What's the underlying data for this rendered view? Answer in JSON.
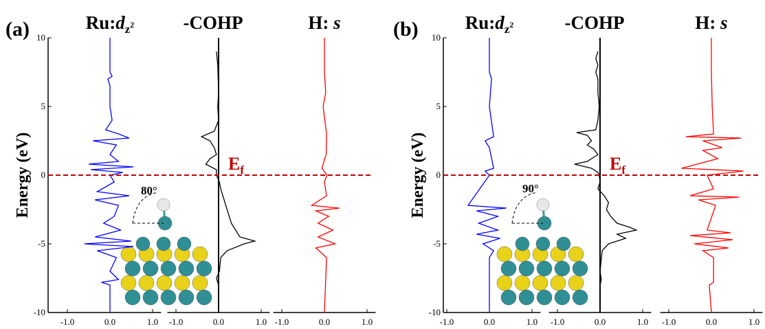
{
  "chart_data": [
    {
      "type": "line",
      "panel_label": "(a)",
      "ylabel": "Energy (eV)",
      "ylim": [
        -10,
        10
      ],
      "yticks": [
        -10,
        -5,
        0,
        5,
        10
      ],
      "fermi_level": 0,
      "fermi_color": "#c00000",
      "fermi_label": [
        "E",
        "f"
      ],
      "inset_angle_label": "80°",
      "subplots": [
        {
          "title": [
            "Ru:",
            "d",
            "z",
            "2"
          ],
          "xlim": [
            -1.2,
            1.2
          ],
          "xticks": [
            {
              "value": -1,
              "label": "-1.0"
            },
            {
              "value": 0,
              "label": "0.0"
            },
            {
              "value": 1,
              "label": "1.0"
            }
          ],
          "series": [
            {
              "color": "#0000ff",
              "y": [
                10,
                7.5,
                7.2,
                7,
                6.5,
                5,
                4,
                3.3,
                3,
                2.7,
                2.5,
                2.2,
                1.5,
                1,
                0.8,
                0.6,
                0.4,
                0.2,
                0,
                -0.5,
                -1.2,
                -1.5,
                -1.8,
                -2.2,
                -3,
                -3.5,
                -4,
                -4.5,
                -4.8,
                -5,
                -5.2,
                -5.5,
                -6,
                -7,
                -7.6,
                -7.8,
                -8,
                -10
              ],
              "x": [
                0,
                0,
                0.05,
                -0.05,
                0,
                0,
                0.05,
                -0.1,
                0.2,
                0.45,
                -0.4,
                0.15,
                0,
                0.2,
                -0.5,
                0.55,
                -0.45,
                0.3,
                0,
                0.1,
                -0.3,
                0.45,
                -0.35,
                0.2,
                0.1,
                -0.15,
                0.25,
                -0.35,
                0.5,
                -0.6,
                0.55,
                -0.3,
                0.15,
                0,
                0.2,
                -0.2,
                0,
                0
              ]
            }
          ]
        },
        {
          "title": [
            "-COHP"
          ],
          "xlim": [
            -1.2,
            1.2
          ],
          "xticks": [
            {
              "value": -1,
              "label": "-1.0"
            },
            {
              "value": 0,
              "label": "0.0"
            },
            {
              "value": 1,
              "label": "1.0"
            }
          ],
          "series": [
            {
              "color": "#000000",
              "y": [
                9,
                8,
                6,
                5,
                4,
                3.2,
                2.8,
                2.5,
                2,
                1.5,
                1.2,
                0.8,
                0.4,
                0,
                -0.5,
                -1,
                -1.5,
                -2,
                -2.5,
                -3,
                -3.5,
                -4,
                -4.5,
                -4.8,
                -5,
                -5.5,
                -6,
                -7,
                -7.5,
                -8
              ],
              "x": [
                -0.05,
                -0.02,
                0,
                -0.02,
                0,
                -0.1,
                -0.4,
                -0.2,
                -0.1,
                -0.05,
                -0.2,
                -0.3,
                -0.05,
                -0.05,
                0.02,
                0.05,
                0.1,
                0.15,
                0.2,
                0.25,
                0.3,
                0.4,
                0.5,
                0.85,
                0.6,
                0.2,
                0.05,
                0.02,
                -0.05,
                0
              ]
            }
          ]
        },
        {
          "title": [
            "H: ",
            "s"
          ],
          "xlim": [
            -1.2,
            1.2
          ],
          "xticks": [
            {
              "value": -1,
              "label": "-1.0"
            },
            {
              "value": 0,
              "label": "0.0"
            },
            {
              "value": 1,
              "label": "1.0"
            }
          ],
          "series": [
            {
              "color": "#ff0000",
              "y": [
                10,
                7.5,
                6,
                5,
                3,
                1.5,
                0.5,
                0,
                -0.5,
                -1.5,
                -2.2,
                -2.4,
                -2.6,
                -3,
                -3.5,
                -4,
                -4.5,
                -5,
                -5.3,
                -6,
                -10
              ],
              "x": [
                0,
                0,
                0.03,
                -0.03,
                0.05,
                0.04,
                -0.06,
                0.06,
                0,
                0.05,
                -0.3,
                0.35,
                -0.2,
                0.1,
                -0.15,
                0.2,
                -0.15,
                0.25,
                -0.2,
                0.05,
                0
              ]
            }
          ]
        }
      ]
    },
    {
      "type": "line",
      "panel_label": "(b)",
      "ylabel": "Energy (eV)",
      "ylim": [
        -10,
        10
      ],
      "yticks": [
        -10,
        -5,
        0,
        5,
        10
      ],
      "fermi_level": 0,
      "fermi_color": "#c00000",
      "fermi_label": [
        "E",
        "f"
      ],
      "inset_angle_label": "90°",
      "subplots": [
        {
          "title": [
            "Ru:",
            "d",
            "z",
            "2"
          ],
          "xlim": [
            -1.2,
            1.2
          ],
          "xticks": [
            {
              "value": -1,
              "label": "-1.0"
            },
            {
              "value": 0,
              "label": "0.0"
            },
            {
              "value": 1,
              "label": "1.0"
            }
          ],
          "series": [
            {
              "color": "#0000ff",
              "y": [
                10,
                7.5,
                7,
                5,
                2.8,
                2.5,
                2,
                0.5,
                0.3,
                0,
                -2.2,
                -2.4,
                -2.6,
                -3,
                -3.5,
                -4,
                -4.3,
                -4.6,
                -5,
                -5.5,
                -6,
                -10
              ],
              "x": [
                0,
                0,
                0.05,
                0,
                0.1,
                -0.1,
                0,
                0.1,
                -0.1,
                0,
                -0.5,
                0.4,
                -0.3,
                0.2,
                -0.25,
                0.2,
                -0.3,
                0.25,
                -0.15,
                0.1,
                0,
                0
              ]
            }
          ]
        },
        {
          "title": [
            "-COHP"
          ],
          "xlim": [
            -1.2,
            1.2
          ],
          "xticks": [
            {
              "value": -1,
              "label": "-1.0"
            },
            {
              "value": 0,
              "label": "0.0"
            },
            {
              "value": 1,
              "label": "1.0"
            }
          ],
          "series": [
            {
              "color": "#000000",
              "y": [
                9,
                8.5,
                8,
                7.5,
                7,
                6,
                5,
                4,
                3.3,
                3.1,
                2.9,
                2.5,
                2.2,
                1.9,
                1.5,
                1,
                0.8,
                0.5,
                0.2,
                0,
                -0.5,
                -1,
                -1.5,
                -2,
                -2.5,
                -3,
                -3.5,
                -3.8,
                -4,
                -4.3,
                -4.6,
                -5,
                -5.5,
                -7,
                -7.6,
                -8
              ],
              "x": [
                -0.05,
                -0.1,
                -0.05,
                -0.1,
                -0.05,
                -0.05,
                -0.02,
                -0.05,
                -0.1,
                -0.55,
                -0.3,
                -0.2,
                -0.3,
                -0.15,
                -0.05,
                -0.3,
                -0.6,
                -0.2,
                -0.05,
                -0.02,
                0,
                -0.05,
                0.1,
                0.2,
                0.15,
                0.25,
                0.4,
                0.7,
                0.85,
                0.4,
                0.6,
                0.2,
                0.05,
                0,
                0.03,
                0
              ]
            }
          ]
        },
        {
          "title": [
            "H: ",
            "s"
          ],
          "xlim": [
            -1.2,
            1.2
          ],
          "xticks": [
            {
              "value": -1,
              "label": "-1.0"
            },
            {
              "value": 0,
              "label": "0.0"
            },
            {
              "value": 1,
              "label": "1.0"
            }
          ],
          "series": [
            {
              "color": "#ff0000",
              "y": [
                10,
                7.5,
                5,
                3,
                2.8,
                2.7,
                2.5,
                2,
                1.8,
                1.2,
                0.5,
                0.3,
                0,
                -1,
                -1.5,
                -1.6,
                -1.8,
                -2.2,
                -4,
                -4.2,
                -4.4,
                -4.7,
                -5,
                -5.3,
                -5.5,
                -6,
                -7.8,
                -8,
                -10
              ],
              "x": [
                0,
                0,
                0.02,
                0.05,
                -0.6,
                0.7,
                -0.2,
                0.25,
                -0.2,
                0.15,
                -0.7,
                0.75,
                -0.1,
                0.05,
                -0.5,
                0.65,
                -0.3,
                0.1,
                -0.1,
                0.45,
                -0.5,
                0.5,
                -0.4,
                0.4,
                -0.2,
                0.05,
                0.05,
                -0.05,
                0
              ]
            }
          ]
        }
      ]
    }
  ]
}
